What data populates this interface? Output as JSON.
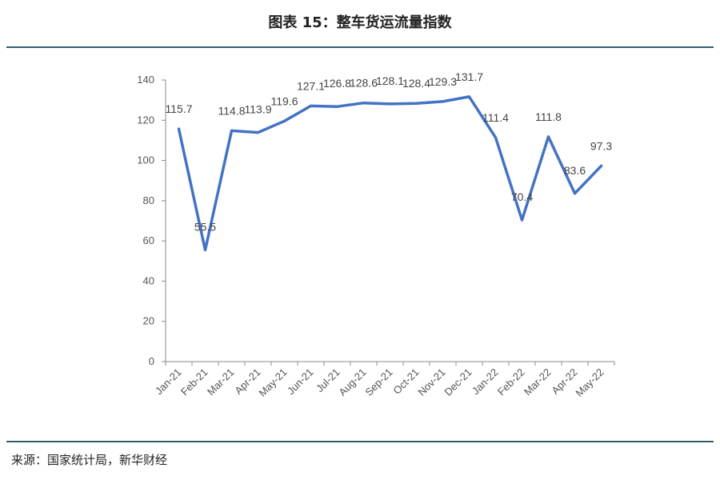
{
  "header": {
    "title": "图表 15：整车货运流量指数"
  },
  "footer": {
    "source": "来源：国家统计局，新华财经"
  },
  "chart_data": {
    "type": "line",
    "title": "",
    "xlabel": "",
    "ylabel": "",
    "ylim": [
      0,
      140
    ],
    "yticks": [
      0,
      20,
      40,
      60,
      80,
      100,
      120,
      140
    ],
    "grid": false,
    "legend": "none",
    "categories": [
      "Jan-21",
      "Feb-21",
      "Mar-21",
      "Apr-21",
      "May-21",
      "Jun-21",
      "Jul-21",
      "Aug-21",
      "Sep-21",
      "Oct-21",
      "Nov-21",
      "Dec-21",
      "Jan-22",
      "Feb-22",
      "Mar-22",
      "Apr-22",
      "May-22"
    ],
    "series": [
      {
        "name": "",
        "color": "#4472c4",
        "values": [
          115.7,
          55.5,
          114.8,
          113.9,
          119.6,
          127.1,
          126.8,
          128.6,
          128.1,
          128.4,
          129.3,
          131.7,
          111.4,
          70.4,
          111.8,
          83.6,
          97.3
        ],
        "labels": [
          "115.7",
          "55.5",
          "114.8",
          "113.9",
          "119.6",
          "127.1",
          "126.8",
          "128.6",
          "128.1",
          "128.4",
          "129.3",
          "131.7",
          "111.4",
          "70.4",
          "111.8",
          "83.6",
          "97.3"
        ]
      }
    ]
  }
}
